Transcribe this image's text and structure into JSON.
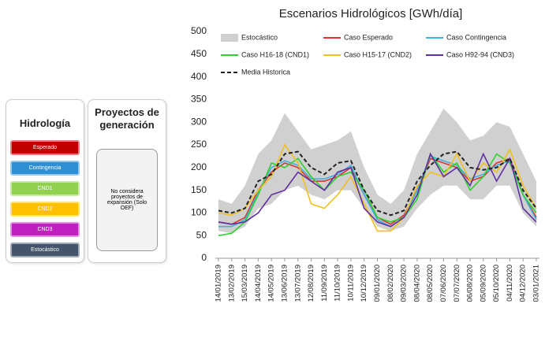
{
  "panels": {
    "hydrology": {
      "title": "Hidrología",
      "buttons": [
        "Esperado",
        "Contingencia",
        "CND1",
        "CND2",
        "CND3",
        "Estocástico"
      ]
    },
    "projects": {
      "title": "Proyectos de generación",
      "note": "No considera proyectos de expansión (Solo OEF)"
    }
  },
  "chart_data": {
    "type": "line",
    "title": "Escenarios Hidrológicos [GWh/día]",
    "categories": [
      "14/01/2019",
      "13/02/2019",
      "15/03/2019",
      "14/04/2019",
      "14/05/2019",
      "13/06/2019",
      "13/07/2019",
      "12/08/2019",
      "11/09/2019",
      "11/10/2019",
      "10/11/2019",
      "10/12/2019",
      "09/01/2020",
      "08/02/2020",
      "09/03/2020",
      "08/04/2020",
      "08/05/2020",
      "07/06/2020",
      "07/07/2020",
      "06/08/2020",
      "05/09/2020",
      "05/10/2020",
      "04/11/2020",
      "04/12/2020",
      "03/01/2021"
    ],
    "ylim": [
      0,
      500
    ],
    "yticks": [
      0,
      50,
      100,
      150,
      200,
      250,
      300,
      350,
      400,
      450,
      500
    ],
    "series": [
      {
        "name": "Estocástico",
        "color": "#d0d0d0",
        "low": [
          60,
          55,
          70,
          110,
          120,
          150,
          160,
          140,
          130,
          150,
          150,
          110,
          70,
          60,
          70,
          110,
          140,
          160,
          160,
          130,
          130,
          160,
          160,
          100,
          70
        ],
        "high": [
          130,
          120,
          160,
          230,
          260,
          320,
          280,
          240,
          250,
          260,
          280,
          200,
          140,
          120,
          150,
          230,
          280,
          330,
          300,
          260,
          270,
          300,
          290,
          230,
          170
        ]
      },
      {
        "name": "Caso Esperado",
        "color": "#e03030",
        "values": [
          80,
          75,
          90,
          150,
          190,
          210,
          200,
          170,
          170,
          180,
          200,
          140,
          90,
          75,
          95,
          150,
          220,
          210,
          200,
          170,
          180,
          210,
          220,
          140,
          90
        ]
      },
      {
        "name": "Caso Contingencia",
        "color": "#40b0e0",
        "values": [
          70,
          70,
          85,
          145,
          200,
          215,
          205,
          175,
          175,
          185,
          205,
          140,
          85,
          70,
          90,
          150,
          225,
          215,
          205,
          175,
          185,
          205,
          215,
          140,
          85
        ]
      },
      {
        "name": "Caso H16-18 (CND1)",
        "color": "#30d030",
        "values": [
          50,
          55,
          80,
          140,
          210,
          200,
          220,
          180,
          150,
          180,
          190,
          150,
          90,
          80,
          90,
          130,
          230,
          190,
          210,
          150,
          180,
          230,
          210,
          140,
          100
        ]
      },
      {
        "name": "Caso H15-17 (CND2)",
        "color": "#f0c020",
        "values": [
          100,
          95,
          110,
          150,
          180,
          250,
          210,
          120,
          110,
          140,
          180,
          120,
          60,
          60,
          90,
          160,
          190,
          180,
          230,
          170,
          210,
          190,
          240,
          160,
          110
        ]
      },
      {
        "name": "Caso H92-94 (CND3)",
        "color": "#6030a0",
        "values": [
          80,
          75,
          80,
          100,
          140,
          150,
          190,
          170,
          150,
          190,
          200,
          110,
          80,
          70,
          90,
          140,
          230,
          180,
          200,
          160,
          230,
          170,
          220,
          110,
          80
        ]
      },
      {
        "name": "Media Historica",
        "color": "#222222",
        "dash": true,
        "values": [
          105,
          100,
          110,
          170,
          185,
          230,
          235,
          200,
          185,
          210,
          215,
          150,
          105,
          95,
          105,
          170,
          205,
          230,
          235,
          200,
          195,
          200,
          220,
          150,
          110
        ]
      }
    ]
  }
}
